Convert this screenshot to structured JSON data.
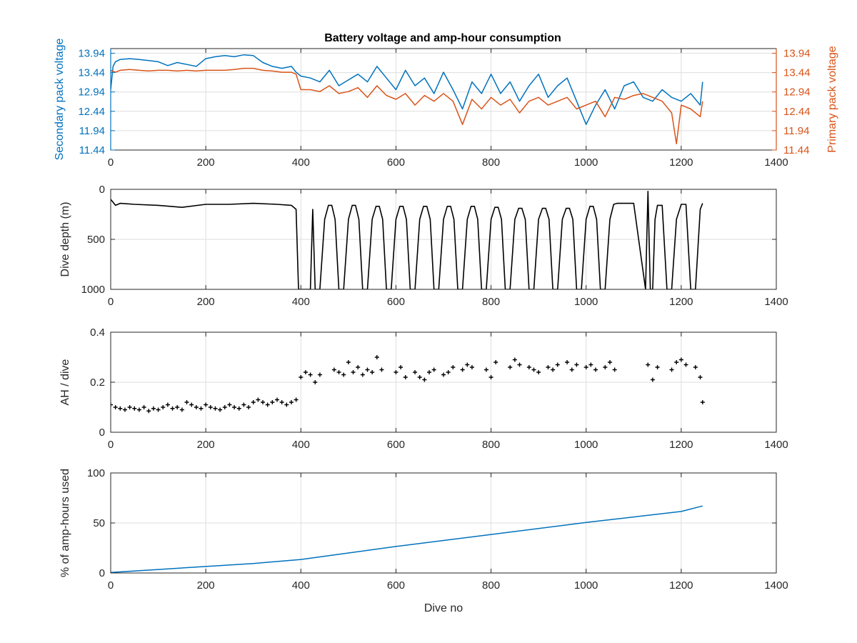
{
  "title": "Battery voltage and amp-hour consumption",
  "colors": {
    "secondary": "#0072BD",
    "primary": "#D95319",
    "depth": "#000000",
    "ah": "#000000",
    "pct": "#0072BD"
  },
  "chart_data": [
    {
      "type": "line",
      "title": "Battery voltage and amp-hour consumption",
      "xlabel": "",
      "ylabel_left": "Secondary pack voltage",
      "ylabel_right": "Primary pack voltage",
      "xlim": [
        0,
        1400
      ],
      "ylim": [
        11.44,
        14.06
      ],
      "xticks": [
        "0",
        "200",
        "400",
        "600",
        "800",
        "1000",
        "1200",
        "1400"
      ],
      "yticks": [
        "11.44",
        "11.94",
        "12.44",
        "12.94",
        "13.44",
        "13.94"
      ],
      "grid": true,
      "series": [
        {
          "color": "#0072BD",
          "x": [
            0,
            5,
            10,
            20,
            40,
            60,
            80,
            100,
            120,
            140,
            160,
            180,
            200,
            220,
            240,
            260,
            280,
            300,
            320,
            340,
            360,
            380,
            390,
            400,
            420,
            440,
            460,
            480,
            500,
            520,
            540,
            560,
            580,
            600,
            620,
            640,
            660,
            680,
            700,
            720,
            740,
            760,
            780,
            800,
            820,
            840,
            860,
            880,
            900,
            920,
            940,
            960,
            980,
            1000,
            1020,
            1040,
            1060,
            1080,
            1100,
            1120,
            1140,
            1160,
            1180,
            1200,
            1220,
            1240,
            1245
          ],
          "y": [
            13.0,
            13.6,
            13.72,
            13.78,
            13.8,
            13.78,
            13.75,
            13.72,
            13.62,
            13.7,
            13.65,
            13.6,
            13.8,
            13.85,
            13.88,
            13.85,
            13.9,
            13.88,
            13.7,
            13.6,
            13.55,
            13.6,
            13.45,
            13.35,
            13.3,
            13.2,
            13.5,
            13.1,
            13.25,
            13.4,
            13.2,
            13.6,
            13.3,
            13.0,
            13.5,
            13.1,
            13.3,
            12.9,
            13.45,
            13.0,
            12.5,
            13.2,
            12.9,
            13.4,
            12.9,
            13.2,
            12.7,
            13.1,
            13.4,
            12.8,
            13.1,
            13.3,
            12.7,
            12.1,
            12.6,
            13.0,
            12.5,
            13.1,
            13.2,
            12.8,
            12.7,
            13.0,
            12.8,
            12.7,
            12.9,
            12.6,
            13.2
          ]
        },
        {
          "color": "#D95319",
          "x": [
            0,
            10,
            20,
            40,
            60,
            80,
            100,
            120,
            140,
            160,
            180,
            200,
            220,
            240,
            260,
            280,
            300,
            320,
            340,
            360,
            380,
            390,
            400,
            420,
            440,
            460,
            480,
            500,
            520,
            540,
            560,
            580,
            600,
            620,
            640,
            660,
            680,
            700,
            720,
            740,
            760,
            780,
            800,
            820,
            840,
            860,
            880,
            900,
            920,
            940,
            960,
            980,
            1000,
            1020,
            1040,
            1060,
            1080,
            1100,
            1120,
            1140,
            1160,
            1180,
            1190,
            1200,
            1220,
            1240,
            1245
          ],
          "y": [
            13.5,
            13.45,
            13.5,
            13.52,
            13.5,
            13.48,
            13.5,
            13.5,
            13.48,
            13.5,
            13.48,
            13.5,
            13.5,
            13.5,
            13.52,
            13.55,
            13.55,
            13.5,
            13.48,
            13.45,
            13.45,
            13.4,
            13.0,
            13.0,
            12.95,
            13.1,
            12.9,
            12.95,
            13.05,
            12.8,
            13.1,
            12.85,
            12.75,
            12.9,
            12.6,
            12.85,
            12.7,
            12.9,
            12.7,
            12.1,
            12.75,
            12.5,
            12.8,
            12.6,
            12.75,
            12.4,
            12.7,
            12.8,
            12.6,
            12.7,
            12.8,
            12.5,
            12.6,
            12.7,
            12.3,
            12.8,
            12.75,
            12.85,
            12.9,
            12.8,
            12.7,
            12.4,
            11.6,
            12.6,
            12.5,
            12.3,
            12.7
          ]
        }
      ]
    },
    {
      "type": "line",
      "ylabel": "Dive depth (m)",
      "xlim": [
        0,
        1400
      ],
      "ylim": [
        0,
        1000
      ],
      "y_reversed": true,
      "xticks": [
        "0",
        "200",
        "400",
        "600",
        "800",
        "1000",
        "1200",
        "1400"
      ],
      "yticks": [
        "0",
        "500",
        "1000"
      ],
      "grid": true,
      "series": [
        {
          "color": "#000000",
          "x": [
            0,
            10,
            20,
            50,
            100,
            150,
            200,
            250,
            300,
            350,
            380,
            390,
            395,
            405,
            415,
            420,
            425,
            430,
            440,
            450,
            458,
            465,
            472,
            480,
            490,
            500,
            508,
            515,
            522,
            530,
            540,
            550,
            558,
            565,
            572,
            580,
            590,
            600,
            608,
            615,
            622,
            630,
            640,
            650,
            658,
            665,
            672,
            680,
            690,
            700,
            708,
            715,
            722,
            730,
            740,
            750,
            758,
            765,
            772,
            780,
            790,
            800,
            808,
            815,
            822,
            830,
            840,
            850,
            858,
            865,
            872,
            880,
            890,
            900,
            908,
            915,
            922,
            930,
            940,
            950,
            958,
            965,
            972,
            980,
            990,
            1000,
            1008,
            1015,
            1022,
            1030,
            1040,
            1050,
            1058,
            1065,
            1075,
            1100,
            1125,
            1130,
            1135,
            1140,
            1145,
            1150,
            1160,
            1170,
            1180,
            1190,
            1200,
            1210,
            1220,
            1230,
            1240,
            1245
          ],
          "y": [
            100,
            160,
            140,
            150,
            160,
            180,
            150,
            150,
            140,
            150,
            160,
            200,
            1000,
            1000,
            1000,
            1000,
            200,
            1000,
            1000,
            300,
            160,
            160,
            300,
            1000,
            1000,
            300,
            160,
            160,
            300,
            1000,
            1000,
            300,
            170,
            170,
            300,
            1000,
            1000,
            300,
            170,
            170,
            300,
            1000,
            1000,
            300,
            170,
            170,
            300,
            1000,
            1000,
            300,
            170,
            170,
            300,
            1000,
            1000,
            300,
            170,
            170,
            300,
            1000,
            1000,
            300,
            180,
            180,
            300,
            1000,
            1000,
            300,
            190,
            190,
            300,
            1000,
            1000,
            300,
            190,
            190,
            300,
            1000,
            1000,
            300,
            190,
            190,
            300,
            1000,
            1000,
            300,
            170,
            170,
            300,
            1000,
            1000,
            300,
            150,
            140,
            140,
            140,
            1000,
            20,
            1000,
            1000,
            300,
            160,
            160,
            1000,
            1000,
            300,
            150,
            150,
            1000,
            1000,
            200,
            140
          ]
        }
      ]
    },
    {
      "type": "scatter",
      "ylabel": "AH / dive",
      "xlim": [
        0,
        1400
      ],
      "ylim": [
        0,
        0.4
      ],
      "xticks": [
        "0",
        "200",
        "400",
        "600",
        "800",
        "1000",
        "1200",
        "1400"
      ],
      "yticks": [
        "0",
        "0.2",
        "0.4"
      ],
      "grid": true,
      "series": [
        {
          "color": "#000000",
          "x": [
            0,
            10,
            20,
            30,
            40,
            50,
            60,
            70,
            80,
            90,
            100,
            110,
            120,
            130,
            140,
            150,
            160,
            170,
            180,
            190,
            200,
            210,
            220,
            230,
            240,
            250,
            260,
            270,
            280,
            290,
            300,
            310,
            320,
            330,
            340,
            350,
            360,
            370,
            380,
            390,
            400,
            410,
            420,
            430,
            440,
            470,
            480,
            490,
            500,
            510,
            520,
            530,
            540,
            550,
            560,
            570,
            600,
            610,
            620,
            640,
            650,
            660,
            670,
            680,
            700,
            710,
            720,
            740,
            750,
            760,
            790,
            800,
            810,
            840,
            850,
            860,
            880,
            890,
            900,
            920,
            930,
            940,
            960,
            970,
            980,
            1000,
            1010,
            1020,
            1040,
            1050,
            1060,
            1130,
            1140,
            1150,
            1180,
            1190,
            1200,
            1210,
            1230,
            1240,
            1245
          ],
          "y": [
            0.11,
            0.1,
            0.095,
            0.09,
            0.1,
            0.095,
            0.09,
            0.1,
            0.085,
            0.095,
            0.09,
            0.1,
            0.11,
            0.095,
            0.1,
            0.09,
            0.12,
            0.11,
            0.1,
            0.095,
            0.11,
            0.1,
            0.095,
            0.09,
            0.1,
            0.11,
            0.1,
            0.095,
            0.11,
            0.1,
            0.12,
            0.13,
            0.12,
            0.11,
            0.12,
            0.13,
            0.12,
            0.11,
            0.12,
            0.13,
            0.22,
            0.24,
            0.23,
            0.2,
            0.23,
            0.25,
            0.24,
            0.23,
            0.28,
            0.24,
            0.26,
            0.23,
            0.25,
            0.24,
            0.3,
            0.25,
            0.24,
            0.26,
            0.22,
            0.24,
            0.22,
            0.21,
            0.24,
            0.25,
            0.23,
            0.24,
            0.26,
            0.25,
            0.27,
            0.26,
            0.25,
            0.22,
            0.28,
            0.26,
            0.29,
            0.27,
            0.26,
            0.25,
            0.24,
            0.26,
            0.25,
            0.27,
            0.28,
            0.25,
            0.27,
            0.26,
            0.27,
            0.25,
            0.26,
            0.28,
            0.25,
            0.27,
            0.21,
            0.26,
            0.25,
            0.28,
            0.29,
            0.27,
            0.26,
            0.22,
            0.12
          ]
        }
      ]
    },
    {
      "type": "line",
      "xlabel": "Dive no",
      "ylabel": "% of amp-hours used",
      "xlim": [
        0,
        1400
      ],
      "ylim": [
        0,
        100
      ],
      "xticks": [
        "0",
        "200",
        "400",
        "600",
        "800",
        "1000",
        "1200",
        "1400"
      ],
      "yticks": [
        "0",
        "50",
        "100"
      ],
      "grid": true,
      "series": [
        {
          "color": "#0072BD",
          "x": [
            0,
            100,
            200,
            300,
            400,
            500,
            600,
            700,
            800,
            900,
            1000,
            1100,
            1200,
            1245
          ],
          "y": [
            0.5,
            3.5,
            6.5,
            9.5,
            13.5,
            20.0,
            26.5,
            32.5,
            38.5,
            44.5,
            50.5,
            56.0,
            61.5,
            67.0
          ]
        }
      ]
    }
  ]
}
